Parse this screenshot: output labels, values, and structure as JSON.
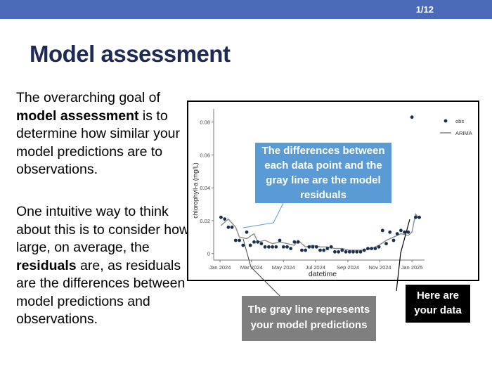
{
  "slide": {
    "number": "1/12",
    "title": "Model assessment"
  },
  "text": {
    "p1": [
      {
        "t": "The overarching goal of ",
        "b": false
      },
      {
        "t": "model assessment",
        "b": true
      },
      {
        "t": " is to determine how similar your model predictions are to observations.",
        "b": false
      }
    ],
    "p2": [
      {
        "t": "One intuitive way to think about this is to consider how large, on average, the ",
        "b": false
      },
      {
        "t": "residuals",
        "b": true
      },
      {
        "t": " are, as residuals are the differences between model predictions and observations.",
        "b": false
      }
    ]
  },
  "callouts": {
    "diff": [
      "The differences between",
      "each data point and the",
      "gray line are the model",
      "residuals"
    ],
    "gray": [
      "The gray line represents",
      "your model predictions"
    ],
    "data": [
      "Here are",
      "your data"
    ]
  },
  "colors": {
    "obs": "#1b2f4e",
    "arima": "#8c8c8c",
    "topbar": "#4a6ab8",
    "title": "#1f2a56"
  },
  "chart_data": {
    "type": "scatter",
    "xlabel": "datetime",
    "ylabel": "chlorophyll-a (mg/L)",
    "xticks": [
      "Jan 2024",
      "Mar 2024",
      "May 2024",
      "Jul 2024",
      "Sep 2024",
      "Nov 2024",
      "Jan 2025"
    ],
    "yticks": [
      "0",
      "0.02",
      "0.04",
      "0.06",
      "0.08"
    ],
    "xlim": [
      "2023-12-20",
      "2025-01-25"
    ],
    "ylim": [
      -0.004,
      0.088
    ],
    "legend": {
      "position": "top-right",
      "entries": [
        "obs",
        "ARIMA"
      ]
    },
    "series": [
      {
        "name": "obs",
        "kind": "points",
        "points": [
          [
            "2024-01-03",
            0.022
          ],
          [
            "2024-01-10",
            0.021
          ],
          [
            "2024-01-17",
            0.016
          ],
          [
            "2024-01-24",
            0.016
          ],
          [
            "2024-01-31",
            0.008
          ],
          [
            "2024-02-07",
            0.008
          ],
          [
            "2024-02-14",
            0.005
          ],
          [
            "2024-02-21",
            0.013
          ],
          [
            "2024-02-28",
            0.005
          ],
          [
            "2024-03-06",
            0.007
          ],
          [
            "2024-03-13",
            0.007
          ],
          [
            "2024-03-20",
            0.006
          ],
          [
            "2024-03-27",
            0.004
          ],
          [
            "2024-04-03",
            0.004
          ],
          [
            "2024-04-10",
            0.004
          ],
          [
            "2024-04-17",
            0.004
          ],
          [
            "2024-04-24",
            0.008
          ],
          [
            "2024-05-01",
            0.004
          ],
          [
            "2024-05-08",
            0.004
          ],
          [
            "2024-05-15",
            0.003
          ],
          [
            "2024-05-22",
            0.007
          ],
          [
            "2024-05-29",
            0.007
          ],
          [
            "2024-06-05",
            0.002
          ],
          [
            "2024-06-12",
            0.002
          ],
          [
            "2024-06-19",
            0.004
          ],
          [
            "2024-06-26",
            0.004
          ],
          [
            "2024-07-03",
            0.004
          ],
          [
            "2024-07-10",
            0.002
          ],
          [
            "2024-07-17",
            0.002
          ],
          [
            "2024-07-24",
            0.003
          ],
          [
            "2024-07-31",
            0.004
          ],
          [
            "2024-08-07",
            0.001
          ],
          [
            "2024-08-14",
            0.001
          ],
          [
            "2024-08-21",
            0.002
          ],
          [
            "2024-08-28",
            0.001
          ],
          [
            "2024-09-04",
            0.001
          ],
          [
            "2024-09-11",
            0.001
          ],
          [
            "2024-09-18",
            0.001
          ],
          [
            "2024-09-25",
            0.001
          ],
          [
            "2024-10-02",
            0.002
          ],
          [
            "2024-10-09",
            0.003
          ],
          [
            "2024-10-16",
            0.003
          ],
          [
            "2024-10-23",
            0.003
          ],
          [
            "2024-10-30",
            0.004
          ],
          [
            "2024-11-06",
            0.014
          ],
          [
            "2024-11-13",
            0.006
          ],
          [
            "2024-11-20",
            0.013
          ],
          [
            "2024-11-27",
            0.008
          ],
          [
            "2024-12-04",
            0.012
          ],
          [
            "2024-12-11",
            0.014
          ],
          [
            "2024-12-18",
            0.013
          ],
          [
            "2024-12-25",
            0.013
          ],
          [
            "2025-01-01",
            0.083
          ],
          [
            "2025-01-08",
            0.022
          ],
          [
            "2025-01-15",
            0.022
          ]
        ]
      },
      {
        "name": "ARIMA",
        "kind": "line",
        "points": [
          [
            "2024-01-03",
            0.017
          ],
          [
            "2024-01-17",
            0.021
          ],
          [
            "2024-01-31",
            0.016
          ],
          [
            "2024-02-07",
            0.01
          ],
          [
            "2024-02-21",
            0.009
          ],
          [
            "2024-03-06",
            0.012
          ],
          [
            "2024-03-13",
            0.007
          ],
          [
            "2024-03-27",
            0.008
          ],
          [
            "2024-04-10",
            0.006
          ],
          [
            "2024-04-24",
            0.007
          ],
          [
            "2024-05-08",
            0.006
          ],
          [
            "2024-05-22",
            0.005
          ],
          [
            "2024-05-29",
            0.008
          ],
          [
            "2024-06-12",
            0.004
          ],
          [
            "2024-06-26",
            0.005
          ],
          [
            "2024-07-10",
            0.004
          ],
          [
            "2024-07-24",
            0.004
          ],
          [
            "2024-08-07",
            0.003
          ],
          [
            "2024-08-21",
            0.003
          ],
          [
            "2024-09-04",
            0.002
          ],
          [
            "2024-09-18",
            0.002
          ],
          [
            "2024-10-02",
            0.002
          ],
          [
            "2024-10-16",
            0.003
          ],
          [
            "2024-10-30",
            0.005
          ],
          [
            "2024-11-13",
            0.008
          ],
          [
            "2024-11-27",
            0.01
          ],
          [
            "2024-12-11",
            0.012
          ],
          [
            "2024-12-25",
            0.011
          ],
          [
            "2025-01-01",
            0.013
          ],
          [
            "2025-01-08",
            0.024
          ],
          [
            "2025-01-15",
            0.021
          ]
        ]
      }
    ]
  }
}
